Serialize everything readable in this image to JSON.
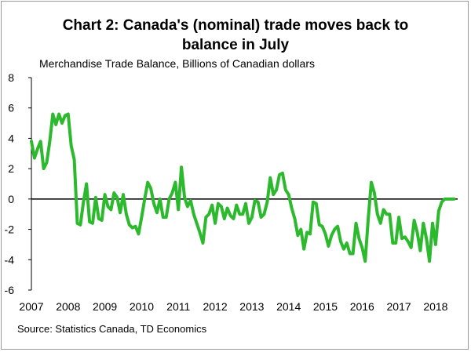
{
  "chart_data": {
    "type": "line",
    "title_line1": "Chart 2: Canada's (nominal) trade moves back to",
    "title_line2": "balance in July",
    "subtitle": "Merchandise Trade Balance, Billions of Canadian dollars",
    "source": "Source: Statistics Canada, TD Economics",
    "xlabel": "",
    "ylabel": "",
    "ylim": [
      -6,
      8
    ],
    "xlim": [
      2007,
      2018.6
    ],
    "y_ticks": [
      "8",
      "6",
      "4",
      "2",
      "0",
      "-2",
      "-4",
      "-6"
    ],
    "x_ticks": [
      "2007",
      "2008",
      "2009",
      "2010",
      "2011",
      "2012",
      "2013",
      "2014",
      "2015",
      "2016",
      "2017",
      "2018"
    ],
    "series": [
      {
        "name": "Merchandise Trade Balance",
        "color": "#2db92d",
        "x": [
          2007.0,
          2007.083,
          2007.167,
          2007.25,
          2007.333,
          2007.417,
          2007.5,
          2007.583,
          2007.667,
          2007.75,
          2007.833,
          2007.917,
          2008.0,
          2008.083,
          2008.167,
          2008.25,
          2008.333,
          2008.417,
          2008.5,
          2008.583,
          2008.667,
          2008.75,
          2008.833,
          2008.917,
          2009.0,
          2009.083,
          2009.167,
          2009.25,
          2009.333,
          2009.417,
          2009.5,
          2009.583,
          2009.667,
          2009.75,
          2009.833,
          2009.917,
          2010.0,
          2010.083,
          2010.167,
          2010.25,
          2010.333,
          2010.417,
          2010.5,
          2010.583,
          2010.667,
          2010.75,
          2010.833,
          2010.917,
          2011.0,
          2011.083,
          2011.167,
          2011.25,
          2011.333,
          2011.417,
          2011.5,
          2011.583,
          2011.667,
          2011.75,
          2011.833,
          2011.917,
          2012.0,
          2012.083,
          2012.167,
          2012.25,
          2012.333,
          2012.417,
          2012.5,
          2012.583,
          2012.667,
          2012.75,
          2012.833,
          2012.917,
          2013.0,
          2013.083,
          2013.167,
          2013.25,
          2013.333,
          2013.417,
          2013.5,
          2013.583,
          2013.667,
          2013.75,
          2013.833,
          2013.917,
          2014.0,
          2014.083,
          2014.167,
          2014.25,
          2014.333,
          2014.417,
          2014.5,
          2014.583,
          2014.667,
          2014.75,
          2014.833,
          2014.917,
          2015.0,
          2015.083,
          2015.167,
          2015.25,
          2015.333,
          2015.417,
          2015.5,
          2015.583,
          2015.667,
          2015.75,
          2015.833,
          2015.917,
          2016.0,
          2016.083,
          2016.167,
          2016.25,
          2016.333,
          2016.417,
          2016.5,
          2016.583,
          2016.667,
          2016.75,
          2016.833,
          2016.917,
          2017.0,
          2017.083,
          2017.167,
          2017.25,
          2017.333,
          2017.417,
          2017.5,
          2017.583,
          2017.667,
          2017.75,
          2017.833,
          2017.917,
          2018.0,
          2018.083,
          2018.167,
          2018.25,
          2018.333,
          2018.417,
          2018.5
        ],
        "values": [
          3.8,
          2.7,
          3.3,
          3.8,
          2.0,
          2.4,
          3.8,
          5.6,
          4.9,
          5.6,
          5.0,
          5.5,
          5.6,
          3.5,
          2.6,
          -1.6,
          -1.7,
          -0.2,
          1.0,
          -1.5,
          -1.6,
          0.1,
          -1.3,
          -1.4,
          0.3,
          -0.5,
          -0.7,
          0.4,
          0.1,
          -0.9,
          0.3,
          -1.0,
          -1.7,
          -1.9,
          -1.8,
          -2.3,
          -1.2,
          0.0,
          1.1,
          0.7,
          -0.3,
          -0.9,
          0.0,
          -1.2,
          -1.2,
          0.0,
          0.4,
          1.1,
          -0.7,
          2.1,
          0.1,
          -0.5,
          -0.1,
          -1.0,
          -1.6,
          -2.2,
          -2.9,
          -1.2,
          -1.0,
          -0.4,
          -1.6,
          -0.3,
          -0.5,
          -1.3,
          -0.6,
          -1.1,
          -1.3,
          -0.4,
          -1.0,
          -1.0,
          -0.3,
          -1.6,
          -1.2,
          -0.1,
          -0.2,
          -1.2,
          -1.0,
          -0.2,
          1.4,
          0.3,
          0.6,
          1.6,
          1.7,
          0.6,
          0.3,
          -0.6,
          -1.3,
          -2.4,
          -2.0,
          -3.3,
          -2.2,
          -2.3,
          -0.2,
          -0.3,
          -1.7,
          -1.8,
          -2.3,
          -3.1,
          -2.4,
          -2.0,
          -1.8,
          -2.8,
          -3.3,
          -2.9,
          -3.6,
          -3.6,
          -1.6,
          -2.6,
          -3.2,
          -4.1,
          -1.3,
          1.1,
          0.4,
          -1.0,
          -1.6,
          -0.7,
          -1.0,
          -1.0,
          -2.9,
          -2.9,
          -1.2,
          -2.6,
          -2.5,
          -2.8,
          -3.2,
          -1.4,
          -2.2,
          -3.4,
          -1.6,
          -2.6,
          -4.1,
          -1.6,
          -3.0,
          -0.8,
          -0.2,
          0.0,
          0.0,
          0.0,
          0.0
        ]
      }
    ]
  }
}
